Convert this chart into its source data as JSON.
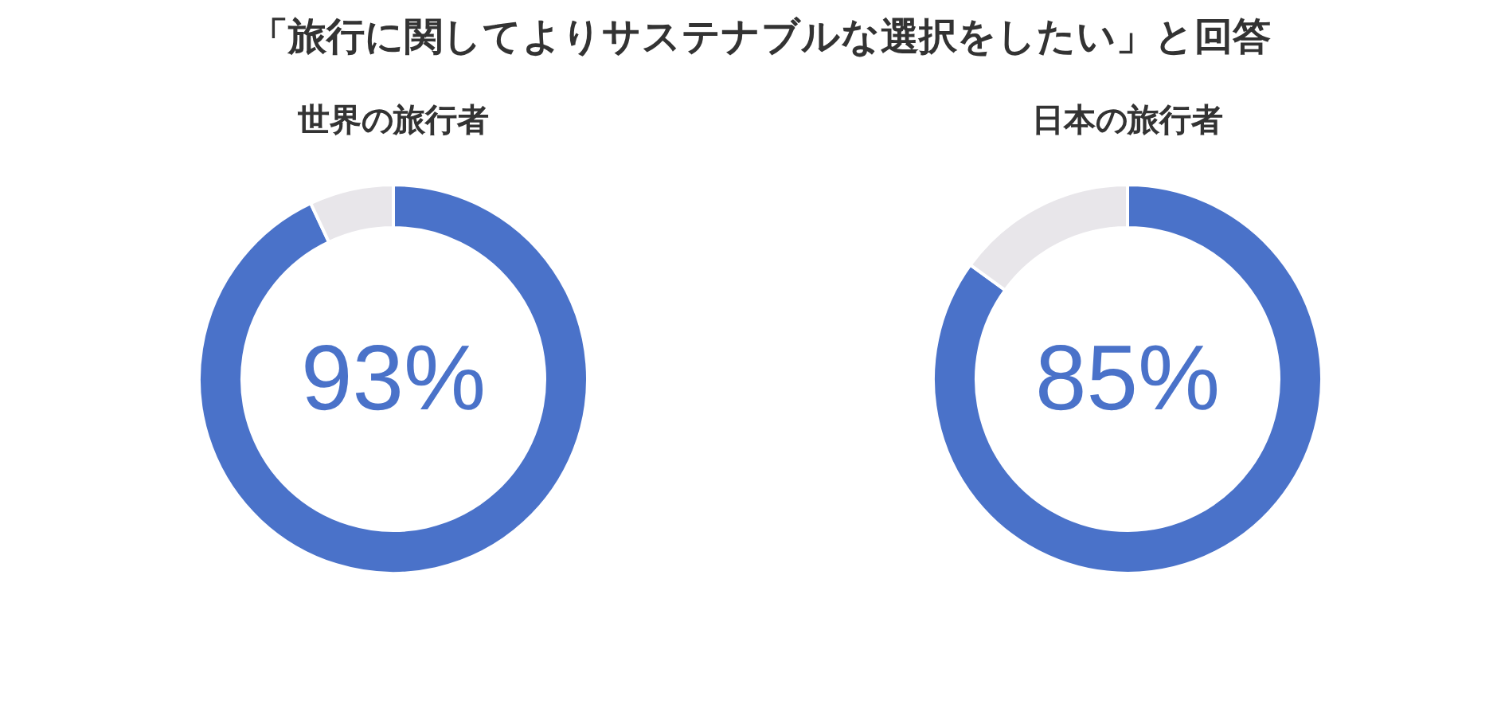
{
  "chart_data": [
    {
      "type": "donut",
      "title": "世界の旅行者",
      "annotations": [
        "「旅行に関してよりサステナブルな選択をしたい」と回答"
      ],
      "categories": [
        null,
        null
      ],
      "values": [
        93,
        7
      ],
      "colors": [
        "#4a72c9",
        "#e8e6ea"
      ],
      "value_labels": [
        "93%",
        null
      ]
    },
    {
      "type": "donut",
      "title": "日本の旅行者",
      "categories": [
        null,
        null
      ],
      "values": [
        85,
        15
      ],
      "colors": [
        "#4a72c9",
        "#e8e6ea"
      ],
      "value_labels": [
        "85%",
        null
      ]
    }
  ]
}
